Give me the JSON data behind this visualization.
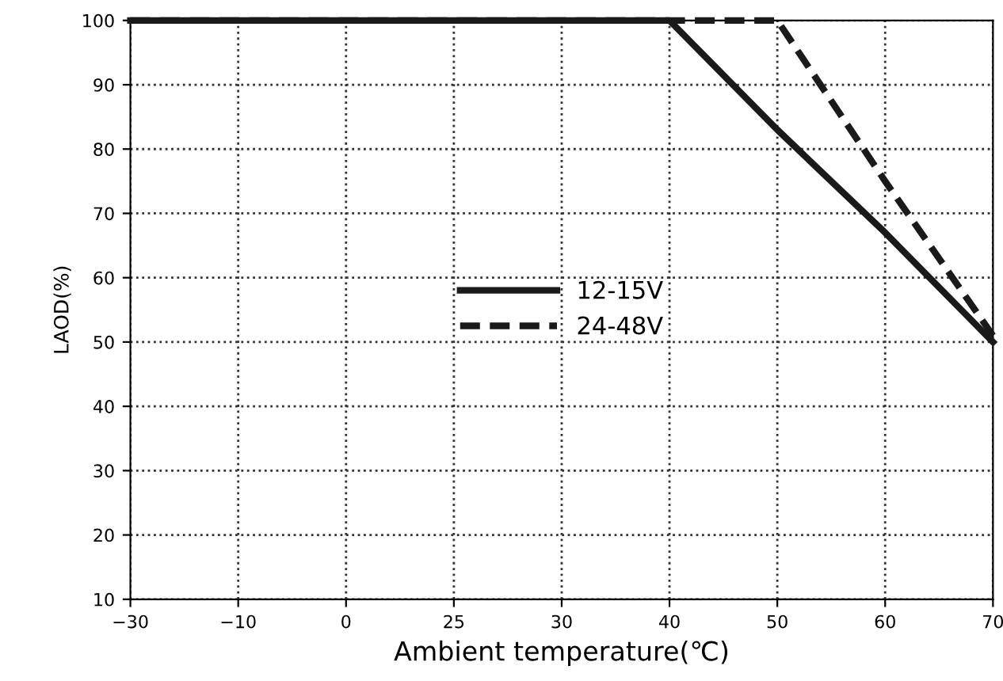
{
  "chart_data": {
    "type": "line",
    "xlabel": "Ambient temperature(℃)",
    "ylabel": "LAOD(%)",
    "categories": [
      "−30",
      "−10",
      "0",
      "25",
      "30",
      "40",
      "50",
      "60",
      "70"
    ],
    "series": [
      {
        "name": "12-15V",
        "color": "#1a1a1a",
        "line_style": "solid",
        "values": [
          100,
          100,
          100,
          100,
          100,
          100,
          83,
          67,
          50
        ]
      },
      {
        "name": "24-48V",
        "color": "#1a1a1a",
        "line_style": "dashed",
        "values": [
          100,
          100,
          100,
          100,
          100,
          100,
          100,
          75,
          51
        ]
      }
    ],
    "ylim": [
      10,
      100
    ],
    "yticks": [
      10,
      20,
      30,
      40,
      50,
      60,
      70,
      80,
      90,
      100
    ],
    "grid": true,
    "legend": "center",
    "marker": "none"
  }
}
